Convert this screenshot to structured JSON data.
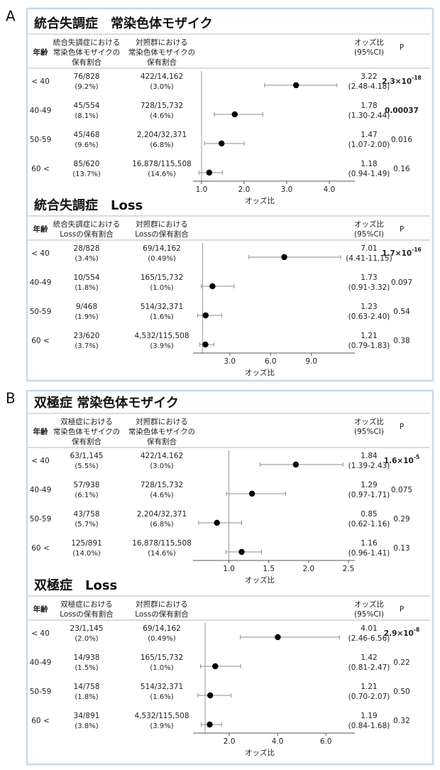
{
  "panel_labels": [
    "A",
    "B"
  ],
  "chart_data": [
    {
      "type": "forest",
      "title": "統合失調症　常染色体モザイク",
      "age_header": "年齢",
      "case_header": [
        "統合失調症における",
        "常染色体モザイクの",
        "保有割合"
      ],
      "control_header": [
        "対照群における",
        "常染色体モザイクの",
        "保有割合"
      ],
      "or_header": [
        "オッズ比",
        "(95%CI)"
      ],
      "p_header": "P",
      "categories": [
        "< 40",
        "40-49",
        "50-59",
        "60 <"
      ],
      "case_counts": [
        "76/828",
        "45/554",
        "45/468",
        "85/620"
      ],
      "case_pcts": [
        "(9.2%)",
        "(8.1%)",
        "(9.6%)",
        "(13.7%)"
      ],
      "control_counts": [
        "422/14,162",
        "728/15,732",
        "2,204/32,371",
        "16,878/115,508"
      ],
      "control_pcts": [
        "(3.0%)",
        "(4.6%)",
        "(6.8%)",
        "(14.6%)"
      ],
      "values": [
        3.22,
        1.78,
        1.47,
        1.18
      ],
      "ci_low": [
        2.48,
        1.3,
        1.07,
        0.94
      ],
      "ci_high": [
        4.18,
        2.44,
        2.0,
        1.49
      ],
      "ci_labels": [
        "(2.48-4.18)",
        "(1.30-2.44)",
        "(1.07-2.00)",
        "(0.94-1.49)"
      ],
      "p_values": [
        {
          "base": "2.3×10",
          "exponent": "-18"
        },
        "0.00037",
        "0.016",
        "0.16"
      ],
      "p_bold": [
        true,
        true,
        false,
        false
      ],
      "xlabel": "オッズ比",
      "xlim": [
        0.8,
        4.6
      ],
      "reference": 1,
      "xticks": [
        {
          "value": 1,
          "label": "1.0"
        },
        {
          "value": 2,
          "label": "2.0"
        },
        {
          "value": 3,
          "label": "3.0"
        },
        {
          "value": 4,
          "label": "4.0"
        }
      ],
      "color": "#000000",
      "ci_color": "#8c8c8c"
    },
    {
      "type": "forest",
      "title": "統合失調症　Loss",
      "age_header": "年齢",
      "case_header": [
        "統合失調症における",
        "Lossの保有割合"
      ],
      "control_header": [
        "対照群における",
        "Lossの保有割合"
      ],
      "or_header": [
        "オッズ比",
        "(95%CI)"
      ],
      "p_header": "P",
      "categories": [
        "< 40",
        "40-49",
        "50-59",
        "60 <"
      ],
      "case_counts": [
        "28/828",
        "10/554",
        "9/468",
        "23/620"
      ],
      "case_pcts": [
        "(3.4%)",
        "(1.8%)",
        "(1.9%)",
        "(3.7%)"
      ],
      "control_counts": [
        "69/14,162",
        "165/15,732",
        "514/32,371",
        "4,532/115,508"
      ],
      "control_pcts": [
        "(0.49%)",
        "(1.0%)",
        "(1.6%)",
        "(3.9%)"
      ],
      "values": [
        7.01,
        1.73,
        1.23,
        1.21
      ],
      "ci_low": [
        4.41,
        0.91,
        0.63,
        0.79
      ],
      "ci_high": [
        11.15,
        3.32,
        2.4,
        1.83
      ],
      "ci_labels": [
        "(4.41-11.15)",
        "(0.91-3.32)",
        "(0.63-2.40)",
        "(0.79-1.83)"
      ],
      "p_values": [
        {
          "base": "1.7×10",
          "exponent": "-16"
        },
        "0.097",
        "0.54",
        "0.38"
      ],
      "p_bold": [
        true,
        false,
        false,
        false
      ],
      "xlabel": "オッズ比",
      "xlim": [
        0.3,
        12.2
      ],
      "reference": 1,
      "xticks": [
        {
          "value": 3,
          "label": "3.0"
        },
        {
          "value": 6,
          "label": "6.0"
        },
        {
          "value": 9,
          "label": "9.0"
        }
      ],
      "color": "#000000",
      "ci_color": "#8c8c8c"
    },
    {
      "type": "forest",
      "title": "双極症 常染色体モザイク",
      "age_header": "年齢",
      "case_header": [
        "双極症における",
        "常染色体モザイクの",
        "保有割合"
      ],
      "control_header": [
        "対照群における",
        "常染色体モザイクの",
        "保有割合"
      ],
      "or_header": [
        "オッズ比",
        "(95%CI)"
      ],
      "p_header": "P",
      "categories": [
        "< 40",
        "40-49",
        "50-59",
        "60 <"
      ],
      "case_counts": [
        "63/1,145",
        "57/938",
        "43/758",
        "125/891"
      ],
      "case_pcts": [
        "(5.5%)",
        "(6.1%)",
        "(5.7%)",
        "(14.0%)"
      ],
      "control_counts": [
        "422/14,162",
        "728/15,732",
        "2,204/32,371",
        "16,878/115,508"
      ],
      "control_pcts": [
        "(3.0%)",
        "(4.6%)",
        "(6.8%)",
        "(14.6%)"
      ],
      "values": [
        1.84,
        1.29,
        0.85,
        1.16
      ],
      "ci_low": [
        1.39,
        0.97,
        0.62,
        0.96
      ],
      "ci_high": [
        2.43,
        1.71,
        1.16,
        1.41
      ],
      "ci_labels": [
        "(1.39-2.43)",
        "(0.97-1.71)",
        "(0.62-1.16)",
        "(0.96-1.41)"
      ],
      "p_values": [
        {
          "base": "1.6×10",
          "exponent": "-5"
        },
        "0.075",
        "0.29",
        "0.13"
      ],
      "p_bold": [
        true,
        false,
        false,
        false
      ],
      "xlabel": "オッズ比",
      "xlim": [
        0.55,
        2.58
      ],
      "reference": 1,
      "xticks": [
        {
          "value": 1,
          "label": "1.0"
        },
        1.5,
        {
          "value": 2,
          "label": "2.0"
        },
        2.5
      ],
      "color": "#000000",
      "ci_color": "#8c8c8c"
    },
    {
      "type": "forest",
      "title": "双極症　Loss",
      "age_header": "年齢",
      "case_header": [
        "双極症における",
        "Lossの保有割合"
      ],
      "control_header": [
        "対照群における",
        "Lossの保有割合"
      ],
      "or_header": [
        "オッズ比",
        "(95%CI)"
      ],
      "p_header": "P",
      "categories": [
        "< 40",
        "40-49",
        "50-59",
        "60 <"
      ],
      "case_counts": [
        "23/1,145",
        "14/938",
        "14/758",
        "34/891"
      ],
      "case_pcts": [
        "(2.0%)",
        "(1.5%)",
        "(1.8%)",
        "(3.8%)"
      ],
      "control_counts": [
        "69/14,162",
        "165/15,732",
        "514/32,371",
        "4,532/115,508"
      ],
      "control_pcts": [
        "(0.49%)",
        "(1.0%)",
        "(1.6%)",
        "(3.9%)"
      ],
      "values": [
        4.01,
        1.42,
        1.21,
        1.19
      ],
      "ci_low": [
        2.46,
        0.81,
        0.7,
        0.84
      ],
      "ci_high": [
        6.56,
        2.47,
        2.07,
        1.68
      ],
      "ci_labels": [
        "(2.46-6.56)",
        "(0.81-2.47)",
        "(0.70-2.07)",
        "(0.84-1.68)"
      ],
      "p_values": [
        {
          "base": "2.9×10",
          "exponent": "-8"
        },
        "0.22",
        "0.50",
        "0.32"
      ],
      "p_bold": [
        true,
        false,
        false,
        false
      ],
      "xlabel": "オッズ比",
      "xlim": [
        0.5,
        7.2
      ],
      "reference": 1,
      "xticks": [
        {
          "value": 2,
          "label": "2.0"
        },
        {
          "value": 4,
          "label": "4.0"
        },
        {
          "value": 6,
          "label": "6.0"
        }
      ],
      "color": "#000000",
      "ci_color": "#8c8c8c"
    }
  ]
}
